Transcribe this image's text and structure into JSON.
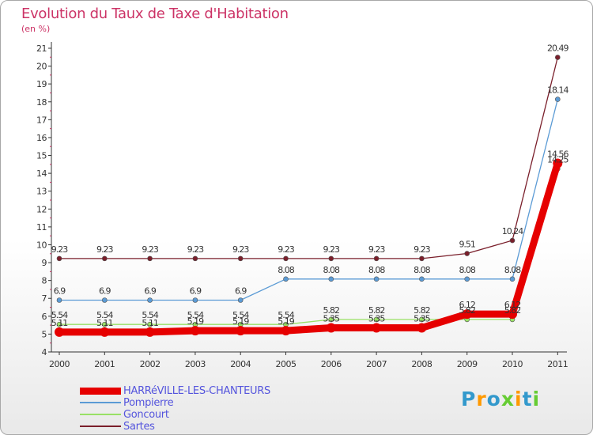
{
  "chart_data": {
    "type": "line",
    "title": "Evolution du Taux de Taxe d'Habitation",
    "ylabel": "(en %)",
    "xlabel": "",
    "categories": [
      "2000",
      "2001",
      "2002",
      "2003",
      "2004",
      "2005",
      "2006",
      "2007",
      "2008",
      "2009",
      "2010",
      "2011"
    ],
    "ylim": [
      4,
      21
    ],
    "yticks": [
      "4",
      "5",
      "6",
      "7",
      "8",
      "9",
      "10",
      "11",
      "12",
      "13",
      "14",
      "15",
      "16",
      "17",
      "18",
      "19",
      "20",
      "21"
    ],
    "grid": false,
    "legend_position": "bottom-left",
    "series": [
      {
        "name": "Sartes",
        "color": "#7a1f2b",
        "values": [
          9.23,
          9.23,
          9.23,
          9.23,
          9.23,
          9.23,
          9.23,
          9.23,
          9.23,
          9.51,
          10.24,
          20.49
        ],
        "labels": [
          "9.23",
          "9.23",
          "9.23",
          "9.23",
          "9.23",
          "9.23",
          "9.23",
          "9.23",
          "9.23",
          "9.51",
          "10.24",
          "20.49"
        ]
      },
      {
        "name": "Pompierre",
        "color": "#5b9bd5",
        "values": [
          6.9,
          6.9,
          6.9,
          6.9,
          6.9,
          8.08,
          8.08,
          8.08,
          8.08,
          8.08,
          8.08,
          18.14
        ],
        "labels": [
          "6.9",
          "6.9",
          "6.9",
          "6.9",
          "6.9",
          "8.08",
          "8.08",
          "8.08",
          "8.08",
          "8.08",
          "8.08",
          "18.14"
        ]
      },
      {
        "name": "Goncourt",
        "color": "#99e066",
        "values": [
          5.54,
          5.54,
          5.54,
          5.54,
          5.54,
          5.54,
          5.82,
          5.82,
          5.82,
          5.82,
          5.82,
          14.25
        ],
        "labels": [
          "5.54",
          "5.54",
          "5.54",
          "5.54",
          "5.54",
          "5.54",
          "5.82",
          "5.82",
          "5.82",
          "5.82",
          "5.82",
          "14.25"
        ]
      },
      {
        "name": "HARRéVILLE-LES-CHANTEURS",
        "color": "#e60000",
        "values": [
          5.11,
          5.11,
          5.11,
          5.19,
          5.19,
          5.19,
          5.35,
          5.35,
          5.35,
          6.12,
          6.12,
          14.56
        ],
        "labels": [
          "5.11",
          "5.11",
          "5.11",
          "5.19",
          "5.19",
          "5.19",
          "5.35",
          "5.35",
          "5.35",
          "6.12",
          "6.12",
          "14.56"
        ]
      }
    ],
    "legend": [
      {
        "name": "HARRéVILLE-LES-CHANTEURS",
        "color": "#e60000",
        "text_color": "#5555dd",
        "weight": "thick"
      },
      {
        "name": "Pompierre",
        "color": "#5b9bd5",
        "text_color": "#5555dd",
        "weight": "thin"
      },
      {
        "name": "Goncourt",
        "color": "#99e066",
        "text_color": "#5555dd",
        "weight": "thin"
      },
      {
        "name": "Sartes",
        "color": "#7a1f2b",
        "text_color": "#5555dd",
        "weight": "thin"
      }
    ]
  },
  "branding": {
    "logo_text": "Proxiti",
    "logo_colors": [
      "#3399cc",
      "#ff9900",
      "#3399cc",
      "#66cc33",
      "#ff9900",
      "#3399cc",
      "#66cc33"
    ]
  }
}
